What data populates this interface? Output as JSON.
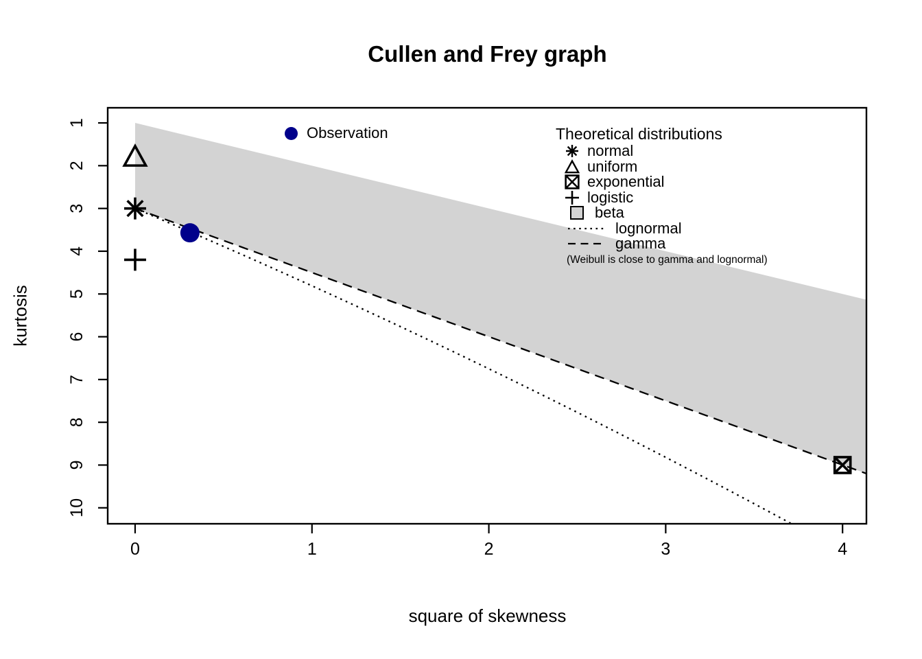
{
  "title": "Cullen and Frey graph",
  "axes": {
    "x_label": "square of skewness",
    "y_label": "kurtosis"
  },
  "observation_legend": {
    "label": "Observation"
  },
  "theoretical_legend": {
    "title": "Theoretical distributions",
    "items": [
      {
        "symbol": "asterisk",
        "label": "normal"
      },
      {
        "symbol": "triangle",
        "label": "uniform"
      },
      {
        "symbol": "boxed-x",
        "label": "exponential"
      },
      {
        "symbol": "plus",
        "label": "logistic"
      },
      {
        "symbol": "square-fill",
        "label": "beta"
      },
      {
        "symbol": "dotted-line",
        "label": "lognormal"
      },
      {
        "symbol": "dashed-line",
        "label": "gamma"
      }
    ],
    "footnote": "(Weibull is close to gamma and lognormal)"
  },
  "colors": {
    "observation": "#00008B",
    "beta_region": "#d3d3d3",
    "line": "#000000",
    "background": "#ffffff"
  },
  "chart_data": {
    "type": "scatter",
    "title": "Cullen and Frey graph",
    "xlabel": "square of skewness",
    "ylabel": "kurtosis",
    "x_axis": {
      "ticks": [
        0,
        1,
        2,
        3,
        4
      ],
      "range": [
        -0.155,
        4.135
      ]
    },
    "y_axis": {
      "ticks": [
        1,
        2,
        3,
        4,
        5,
        6,
        7,
        8,
        9,
        10
      ],
      "range": [
        0.646,
        10.373
      ],
      "reversed": true
    },
    "grid": false,
    "observation_points": [
      {
        "name": "observation",
        "x": 0.31,
        "y": 3.57
      }
    ],
    "theoretical_points": [
      {
        "name": "uniform",
        "symbol": "triangle",
        "x": 0,
        "y": 1.8
      },
      {
        "name": "normal",
        "symbol": "asterisk",
        "x": 0,
        "y": 3
      },
      {
        "name": "logistic",
        "symbol": "plus",
        "x": 0,
        "y": 4.2
      },
      {
        "name": "exponential",
        "symbol": "boxed-x",
        "x": 4,
        "y": 9
      }
    ],
    "beta_region_polygon": [
      [
        0,
        1
      ],
      [
        4.135,
        5.135
      ],
      [
        4.135,
        9.2
      ],
      [
        0,
        3
      ]
    ],
    "curves": [
      {
        "name": "lognormal",
        "style": "dotted",
        "points": [
          [
            0,
            3
          ],
          [
            1.86,
            6.47
          ],
          [
            3.71,
            10.37
          ]
        ]
      },
      {
        "name": "gamma",
        "style": "dashed",
        "points": [
          [
            0,
            3
          ],
          [
            4.135,
            9.2
          ]
        ]
      }
    ]
  }
}
